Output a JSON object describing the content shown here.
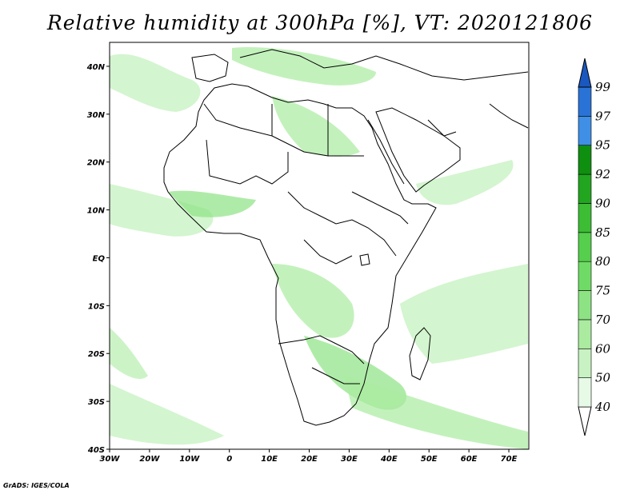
{
  "title": "Relative humidity at 300hPa [%], VT: 2020121806",
  "credit": "GrADS: IGES/COLA",
  "map": {
    "lon_range": [
      -30,
      75
    ],
    "lat_range": [
      -40,
      45
    ],
    "lat_ticks": [
      {
        "value": 40,
        "label": "40N"
      },
      {
        "value": 30,
        "label": "30N"
      },
      {
        "value": 20,
        "label": "20N"
      },
      {
        "value": 10,
        "label": "10N"
      },
      {
        "value": 0,
        "label": "EQ"
      },
      {
        "value": -10,
        "label": "10S"
      },
      {
        "value": -20,
        "label": "20S"
      },
      {
        "value": -30,
        "label": "30S"
      },
      {
        "value": -40,
        "label": "40S"
      }
    ],
    "lon_ticks": [
      {
        "value": -30,
        "label": "30W"
      },
      {
        "value": -20,
        "label": "20W"
      },
      {
        "value": -10,
        "label": "10W"
      },
      {
        "value": 0,
        "label": "0"
      },
      {
        "value": 10,
        "label": "10E"
      },
      {
        "value": 20,
        "label": "20E"
      },
      {
        "value": 30,
        "label": "30E"
      },
      {
        "value": 40,
        "label": "40E"
      },
      {
        "value": 50,
        "label": "50E"
      },
      {
        "value": 60,
        "label": "60E"
      },
      {
        "value": 70,
        "label": "70E"
      }
    ]
  },
  "colorbar": {
    "levels": [
      "40",
      "50",
      "60",
      "70",
      "75",
      "80",
      "85",
      "90",
      "92",
      "95",
      "97",
      "99"
    ],
    "colors": [
      "#e6fae6",
      "#c8f2c3",
      "#aaeba0",
      "#8de383",
      "#6fdb66",
      "#55cf4c",
      "#3cbd34",
      "#22a51f",
      "#0f8f10",
      "#3f8fe6",
      "#2a73d6",
      "#1a58c0"
    ],
    "low_cap_color": "#ffffff",
    "high_cap_color": "#1a58c0"
  }
}
